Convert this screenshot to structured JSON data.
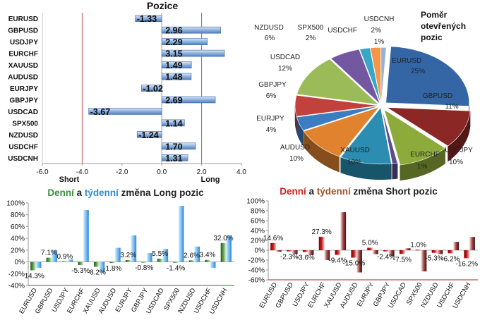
{
  "chart_data": [
    {
      "type": "bar",
      "orientation": "horizontal",
      "title": "Pozice",
      "categories": [
        "EURUSD",
        "GBPUSD",
        "USDJPY",
        "EURCHF",
        "XAUUSD",
        "AUDUSD",
        "EURJPY",
        "GBPJPY",
        "USDCAD",
        "SPX500",
        "NZDUSD",
        "USDCHF",
        "USDCNH"
      ],
      "values": [
        -1.33,
        2.96,
        2.29,
        3.15,
        1.49,
        1.48,
        -1.02,
        2.69,
        -3.67,
        1.14,
        -1.24,
        1.7,
        1.31
      ],
      "value_labels": [
        "-1.33",
        "2.96",
        "2.29",
        "3.15",
        "1.49",
        "1.48",
        "-1.02",
        "2.69",
        "-3.67",
        "1.14",
        "-1.24",
        "1.70",
        "1.31"
      ],
      "xlim": [
        -6,
        4
      ],
      "xticks": [
        "-6.0",
        "-4.0",
        "-2.0",
        "0.0",
        "2.0",
        "4.0"
      ],
      "xtick_values": [
        -6,
        -4,
        -2,
        0,
        2,
        4
      ],
      "short_label": "Short",
      "long_label": "Long",
      "colors": {
        "bar": "#8fb0dc",
        "short_line": "#c0504d",
        "long_line": "#4f9a3a"
      }
    },
    {
      "type": "pie",
      "title_lines": [
        "Poměr",
        "otevřených",
        "pozic"
      ],
      "slices": [
        {
          "name": "EURUSD",
          "pct": "25%",
          "value": 25,
          "color": "#3466a5"
        },
        {
          "name": "GBPUSD",
          "pct": "11%",
          "value": 11,
          "color": "#8b2724"
        },
        {
          "name": "USDJPY",
          "pct": "10%",
          "value": 10,
          "color": "#8dab3b"
        },
        {
          "name": "EURCHF",
          "pct": "1%",
          "value": 1,
          "color": "#5f4b8b"
        },
        {
          "name": "XAUUSD",
          "pct": "10%",
          "value": 10,
          "color": "#2a8db1"
        },
        {
          "name": "AUDUSD",
          "pct": "10%",
          "value": 10,
          "color": "#e0822e"
        },
        {
          "name": "EURJPY",
          "pct": "4%",
          "value": 4,
          "color": "#3c7cc0"
        },
        {
          "name": "GBPJPY",
          "pct": "6%",
          "value": 6,
          "color": "#c2413c"
        },
        {
          "name": "USDCAD",
          "pct": "12%",
          "value": 12,
          "color": "#9bbb59"
        },
        {
          "name": "NZDUSD",
          "pct": "6%",
          "value": 6,
          "color": "#7457a1"
        },
        {
          "name": "SPX500",
          "pct": "2%",
          "value": 2,
          "color": "#38a6c6"
        },
        {
          "name": "USDCHF",
          "pct": "2%",
          "value": 2,
          "color": "#f79646"
        },
        {
          "name": "USDCNH",
          "pct": "1%",
          "value": 1,
          "color": "#95b3d7"
        }
      ]
    },
    {
      "type": "bar",
      "title_parts": [
        "Denní",
        " a ",
        "týdenní",
        " změna Long pozic"
      ],
      "title_colors": [
        "#3a8d3a",
        "#222222",
        "#2e8fd8",
        "#222222"
      ],
      "categories": [
        "EURUSD",
        "GBPUSD",
        "USDJPY",
        "EURCHF",
        "XAUUSD",
        "AUDUSD",
        "EURJPY",
        "GBPJPY",
        "USDCAD",
        "SPX500",
        "NZDUSD",
        "USDCHF",
        "USDCNH"
      ],
      "series": [
        {
          "name": "Denní",
          "values": [
            -14.3,
            7.1,
            0.9,
            -5.3,
            -8.2,
            -1.8,
            3.2,
            -0.8,
            5.5,
            -1.4,
            2.6,
            3.4,
            32.0
          ],
          "color": "#4a9a3c"
        },
        {
          "name": "týdenní",
          "values": [
            -10,
            20,
            4,
            88,
            -18,
            24,
            45,
            15,
            22,
            95,
            26,
            -10,
            45
          ],
          "color": "#6fb4ef"
        }
      ],
      "data_labels": [
        "-14.3%",
        "7.1%",
        "0.9%",
        "-5.3%",
        "-8.2%",
        "-1.8%",
        "3.2%",
        "-0.8%",
        "5.5%",
        "-1.4%",
        "2.6%",
        "3.4%",
        "32.0%"
      ],
      "ylim": [
        -40,
        100
      ],
      "yticks": [
        "-40%",
        "-20%",
        "0%",
        "20%",
        "40%",
        "60%",
        "80%",
        "100%"
      ],
      "ytick_values": [
        -40,
        -20,
        0,
        20,
        40,
        60,
        80,
        100
      ],
      "zero_line_color": "#4f9a3a"
    },
    {
      "type": "bar",
      "title_parts": [
        "Denní",
        " a ",
        "týdenní",
        " změna Short pozic"
      ],
      "title_colors": [
        "#d02020",
        "#222222",
        "#a0522d",
        "#222222"
      ],
      "categories": [
        "EURUSD",
        "GBPUSD",
        "USDJPY",
        "EURCHF",
        "XAUUSD",
        "AUDUSD",
        "EURJPY",
        "GBPJPY",
        "USDCAD",
        "SPX500",
        "NZDUSD",
        "USDCHF",
        "USDCNH"
      ],
      "series": [
        {
          "name": "Denní",
          "values": [
            14.6,
            -2.3,
            -3.6,
            27.3,
            -9.4,
            -15.0,
            5.0,
            -2.4,
            -7.5,
            1.0,
            -5.3,
            -6.2,
            -16.2
          ],
          "color": "#c00000"
        },
        {
          "name": "týdenní",
          "values": [
            -3,
            -8,
            -10,
            -20,
            77,
            -45,
            -8,
            -12,
            4,
            -43,
            -8,
            17,
            27
          ],
          "color": "#6b1f1f"
        }
      ],
      "data_labels": [
        "14.6%",
        "-2.3%",
        "-3.6%",
        "27.3%",
        "-9.4%",
        "-15.0%",
        "5.0%",
        "-2.4%",
        "-7.5%",
        "1.0%",
        "-5.3%",
        "-6.2%",
        "-16.2%"
      ],
      "ylim": [
        -60,
        100
      ],
      "yticks": [
        "-60%",
        "-40%",
        "-20%",
        "0%",
        "20%",
        "40%",
        "60%",
        "80%",
        "100%"
      ],
      "ytick_values": [
        -60,
        -40,
        -20,
        0,
        20,
        40,
        60,
        80,
        100
      ],
      "zero_line_color": "#c0504d"
    }
  ]
}
